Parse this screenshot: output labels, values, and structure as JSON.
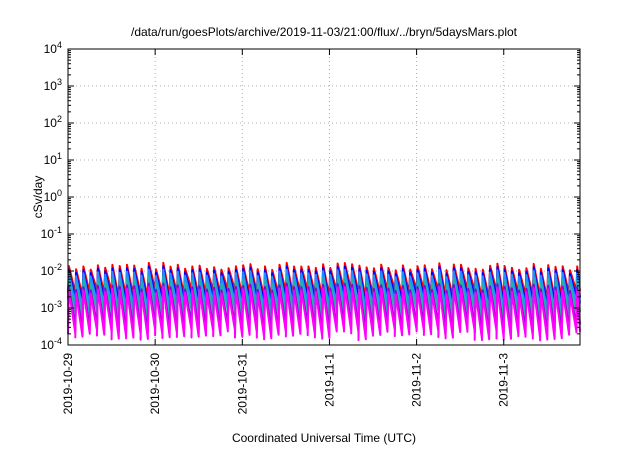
{
  "chart_data": {
    "type": "line",
    "title": "/data/run/goesPlots/archive/2019-11-03/21:00/flux/../bryn/5daysMars.plot",
    "xlabel": "Coordinated Universal Time (UTC)",
    "ylabel": "cSv/day",
    "yscale": "log",
    "ylim": [
      0.0001,
      10000
    ],
    "xlim": [
      "2019-10-29T00:00",
      "2019-11-03T21:00"
    ],
    "grid": true,
    "x_ticks": [
      "2019-10-29",
      "2019-10-30",
      "2019-10-31",
      "2019-11-1",
      "2019-11-2",
      "2019-11-3"
    ],
    "y_ticks": [
      {
        "base": "10",
        "exp": "-4",
        "value": 0.0001
      },
      {
        "base": "10",
        "exp": "-3",
        "value": 0.001
      },
      {
        "base": "10",
        "exp": "-2",
        "value": 0.01
      },
      {
        "base": "10",
        "exp": "-1",
        "value": 0.1
      },
      {
        "base": "10",
        "exp": "0",
        "value": 1
      },
      {
        "base": "10",
        "exp": "1",
        "value": 10
      },
      {
        "base": "10",
        "exp": "2",
        "value": 100
      },
      {
        "base": "10",
        "exp": "3",
        "value": 1000
      },
      {
        "base": "10",
        "exp": "4",
        "value": 10000
      }
    ],
    "orbit_period_hours": 2,
    "series": [
      {
        "color": "#ff0000",
        "peak": 0.013,
        "trough": 0.0024
      },
      {
        "color": "#0000ff",
        "peak": 0.0105,
        "trough": 0.0016
      },
      {
        "color": "#1e90ff",
        "peak": 0.0085,
        "trough": 0.0011
      },
      {
        "color": "#20b2aa",
        "peak": 0.0055,
        "trough": 0.00065
      },
      {
        "color": "#9400d3",
        "peak": 0.0036,
        "trough": 0.0003
      },
      {
        "color": "#ff00ff",
        "peak": 0.0029,
        "trough": 0.00019
      }
    ]
  }
}
